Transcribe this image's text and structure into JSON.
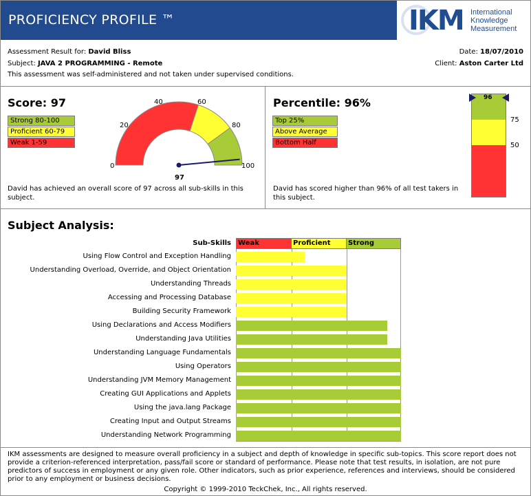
{
  "header": {
    "title": "PROFICIENCY PROFILE ™",
    "logo_text": "IKM",
    "logo_sub": [
      "International",
      "Knowledge",
      "Measurement"
    ]
  },
  "info": {
    "assessment_label": "Assessment Result for:",
    "assessment_name": "David Bliss",
    "subject_label": "Subject:",
    "subject_value": "JAVA 2 PROGRAMMING - Remote",
    "note": "This assessment was self-administered and not taken under supervised conditions.",
    "date_label": "Date:",
    "date_value": "18/07/2010",
    "client_label": "Client:",
    "client_value": "Aston Carter Ltd"
  },
  "score": {
    "title": "Score: 97",
    "value": 97,
    "legend": [
      {
        "label": "Strong 80-100",
        "color": "#a8cc38"
      },
      {
        "label": "Proficient 60-79",
        "color": "#ffff33"
      },
      {
        "label": "Weak 1-59",
        "color": "#ff3333"
      }
    ],
    "gauge_ticks": [
      "0",
      "20",
      "40",
      "60",
      "80",
      "100"
    ],
    "gauge_value_label": "97",
    "description": "David has achieved an overall score of 97 across all sub-skills in this subject."
  },
  "percentile": {
    "title": "Percentile: 96%",
    "value": 96,
    "legend": [
      {
        "label": "Top 25%",
        "color": "#a8cc38"
      },
      {
        "label": "Above Average",
        "color": "#ffff33"
      },
      {
        "label": "Bottom Half",
        "color": "#ff3333"
      }
    ],
    "scale_labels": [
      "75",
      "50"
    ],
    "marker_label": "96",
    "description": "David has scored higher than 96% of all test takers in this subject."
  },
  "analysis": {
    "title": "Subject Analysis:",
    "subskills_header": "Sub-Skills",
    "bands": [
      {
        "label": "Weak",
        "color": "#ff3333"
      },
      {
        "label": "Proficient",
        "color": "#ffff33"
      },
      {
        "label": "Strong",
        "color": "#a8cc38"
      }
    ]
  },
  "chart_data": {
    "type": "bar",
    "categories": [
      "Using Flow Control and Exception Handling",
      "Understanding Overload, Override, and Object Orientation",
      "Understanding Threads",
      "Accessing and Processing Database",
      "Building Security Framework",
      "Using Declarations and Access Modifiers",
      "Understanding Java Utilities",
      "Understanding Language Fundamentals",
      "Using Operators",
      "Understanding JVM Memory Management",
      "Creating GUI Applications and Applets",
      "Using the java.lang Package",
      "Creating Input and Output Streams",
      "Understanding Network Programming"
    ],
    "values": [
      1.25,
      2,
      2,
      2,
      2,
      2.75,
      2.75,
      3,
      3,
      3,
      3,
      3,
      3,
      3
    ],
    "xlim": [
      0,
      3
    ],
    "band_labels": [
      "Weak",
      "Proficient",
      "Strong"
    ]
  },
  "footer": {
    "disclaimer": "IKM assessments are designed to measure overall proficiency in a subject and depth of knowledge in specific sub-topics. This score report does not provide a criterion-referenced interpretation, pass/fail score or standard of performance. Please note that test results, in isolation, are not pure predictors of success in employment or any given role. Other indicators, such as prior experience, references and interviews, should be considered prior to any employment or business decisions.",
    "copyright": "Copyright © 1999-2010 TeckChek, Inc., All rights reserved."
  }
}
